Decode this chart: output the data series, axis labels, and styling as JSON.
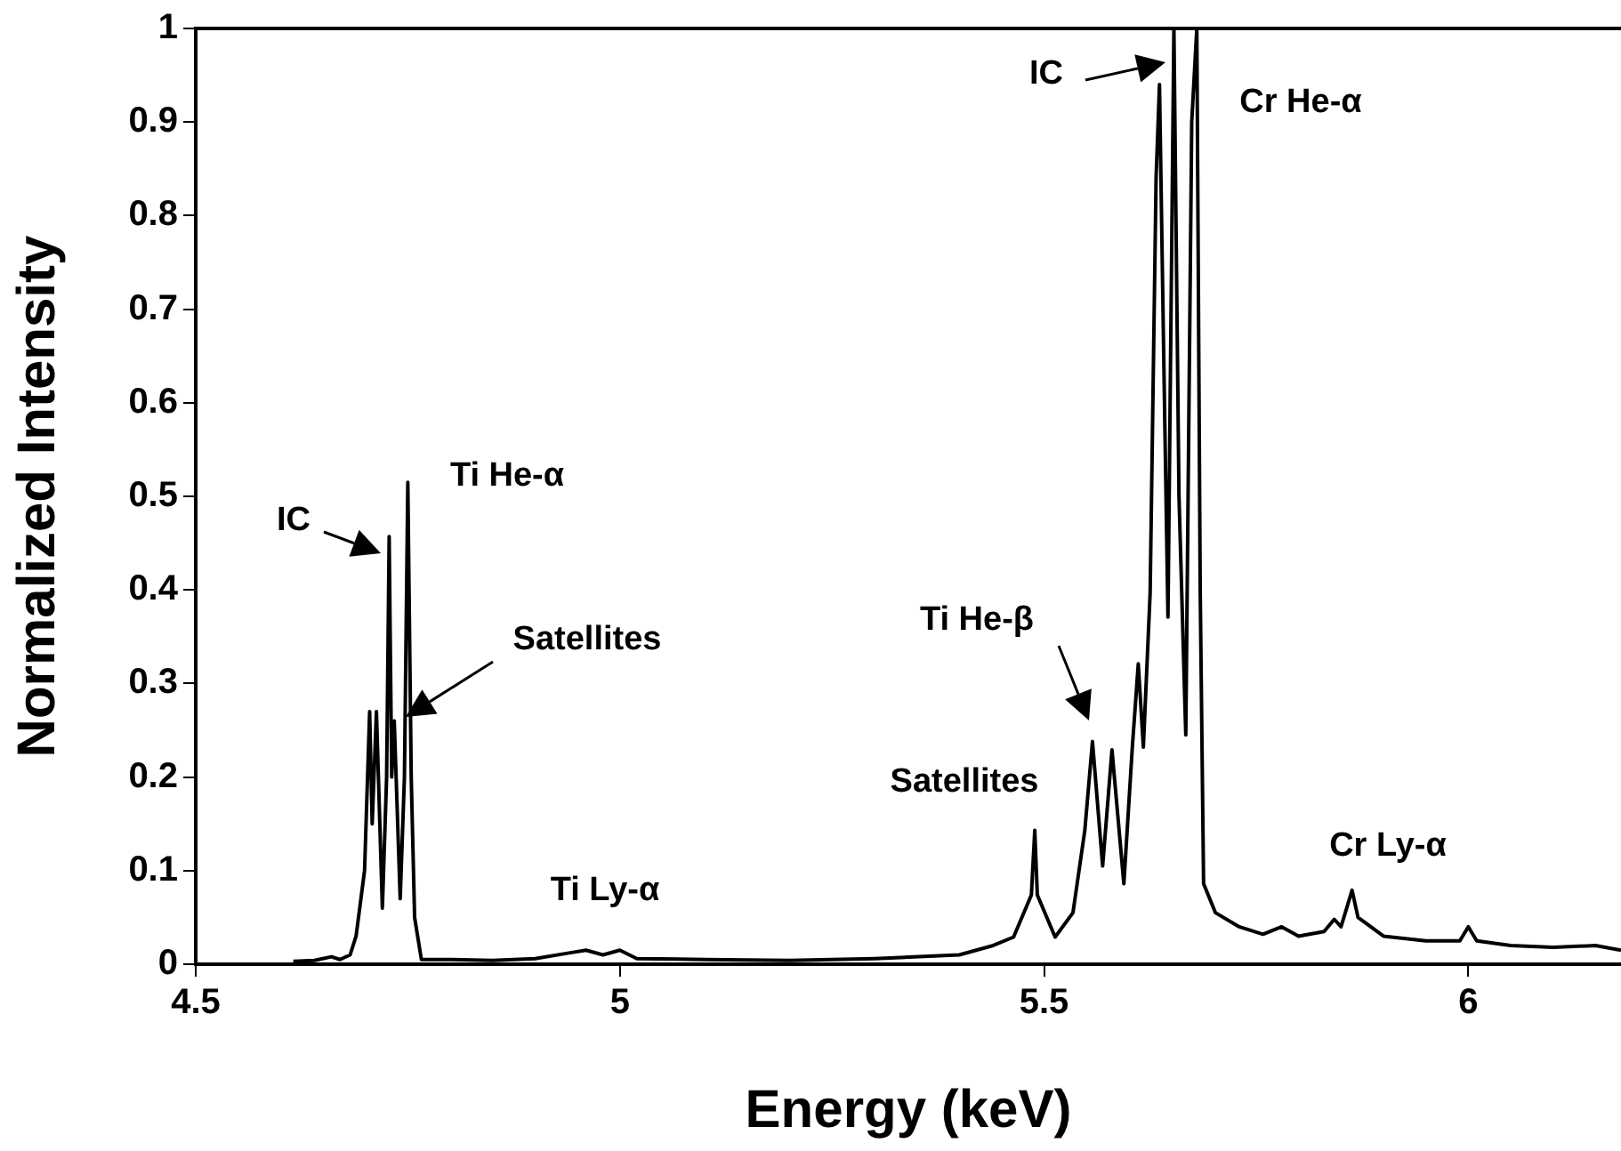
{
  "chart_data": {
    "type": "line",
    "xlabel": "Energy (keV)",
    "ylabel": "Normalized Intensity",
    "xlim": [
      4.5,
      6.18
    ],
    "xticks": [
      4.5,
      5,
      5.5,
      6
    ],
    "ylim": [
      0,
      1
    ],
    "yticks": [
      0,
      0.1,
      0.2,
      0.3,
      0.4,
      0.5,
      0.6,
      0.7,
      0.8,
      0.9,
      1
    ],
    "grid": false,
    "legend": false,
    "marker": "none",
    "line_style": "solid",
    "series": [
      {
        "color": "#000000",
        "x": [
          4.615,
          4.64,
          4.66,
          4.67,
          4.682,
          4.689,
          4.699,
          4.705,
          4.708,
          4.713,
          4.72,
          4.725,
          4.728,
          4.731,
          4.734,
          4.741,
          4.746,
          4.75,
          4.754,
          4.758,
          4.766,
          4.8,
          4.85,
          4.9,
          4.94,
          4.96,
          4.98,
          5.0,
          5.02,
          5.1,
          5.2,
          5.3,
          5.4,
          5.44,
          5.464,
          5.485,
          5.489,
          5.492,
          5.513,
          5.534,
          5.548,
          5.557,
          5.569,
          5.58,
          5.594,
          5.604,
          5.611,
          5.617,
          5.625,
          5.632,
          5.636,
          5.641,
          5.646,
          5.653,
          5.659,
          5.667,
          5.674,
          5.68,
          5.684,
          5.688,
          5.702,
          5.73,
          5.758,
          5.78,
          5.8,
          5.83,
          5.842,
          5.85,
          5.863,
          5.87,
          5.9,
          5.95,
          5.99,
          6.0,
          6.01,
          6.05,
          6.1,
          6.15,
          6.18
        ],
        "values": [
          0.003,
          0.004,
          0.008,
          0.005,
          0.01,
          0.03,
          0.1,
          0.27,
          0.15,
          0.27,
          0.06,
          0.2,
          0.457,
          0.2,
          0.26,
          0.07,
          0.2,
          0.515,
          0.2,
          0.05,
          0.005,
          0.005,
          0.004,
          0.006,
          0.012,
          0.015,
          0.01,
          0.015,
          0.006,
          0.005,
          0.004,
          0.006,
          0.01,
          0.02,
          0.029,
          0.074,
          0.143,
          0.074,
          0.029,
          0.055,
          0.143,
          0.238,
          0.105,
          0.229,
          0.086,
          0.232,
          0.321,
          0.232,
          0.397,
          0.84,
          0.94,
          0.65,
          0.371,
          1.0,
          0.5,
          0.245,
          0.9,
          1.0,
          0.4,
          0.086,
          0.055,
          0.04,
          0.032,
          0.04,
          0.03,
          0.035,
          0.048,
          0.04,
          0.079,
          0.05,
          0.03,
          0.025,
          0.025,
          0.04,
          0.025,
          0.02,
          0.018,
          0.02,
          0.015
        ]
      }
    ],
    "annotations": [
      "IC",
      "Ti He-α",
      "Satellites",
      "Ti Ly-α",
      "Satellites",
      "Ti He-β",
      "IC",
      "Cr He-α",
      "Cr Ly-α"
    ]
  }
}
